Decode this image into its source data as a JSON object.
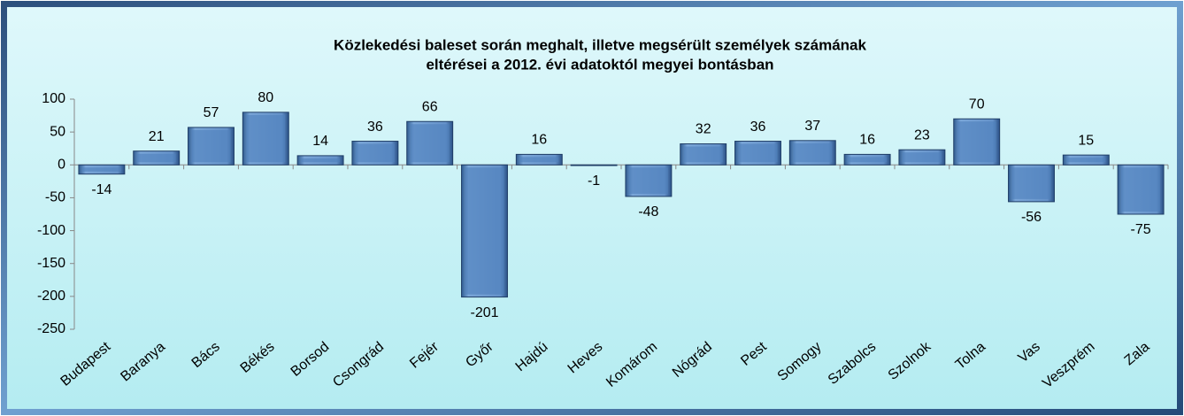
{
  "chart_data": {
    "type": "bar",
    "title": [
      "Közlekedési baleset során meghalt, illetve megsérült személyek számának",
      "eltérései a 2012. évi adatoktól megyei bontásban"
    ],
    "categories": [
      "Budapest",
      "Baranya",
      "Bács",
      "Békés",
      "Borsod",
      "Csongrád",
      "Fejér",
      "Győr",
      "Hajdú",
      "Heves",
      "Komárom",
      "Nógrád",
      "Pest",
      "Somogy",
      "Szabolcs",
      "Szolnok",
      "Tolna",
      "Vas",
      "Veszprém",
      "Zala"
    ],
    "values": [
      -14,
      21,
      57,
      80,
      14,
      36,
      66,
      -201,
      16,
      -1,
      -48,
      32,
      36,
      37,
      16,
      23,
      70,
      -56,
      15,
      -75
    ],
    "color": "#4f81bd",
    "ylim": [
      -250,
      100
    ],
    "yticks": [
      -250,
      -200,
      -150,
      -100,
      -50,
      0,
      50,
      100
    ]
  }
}
